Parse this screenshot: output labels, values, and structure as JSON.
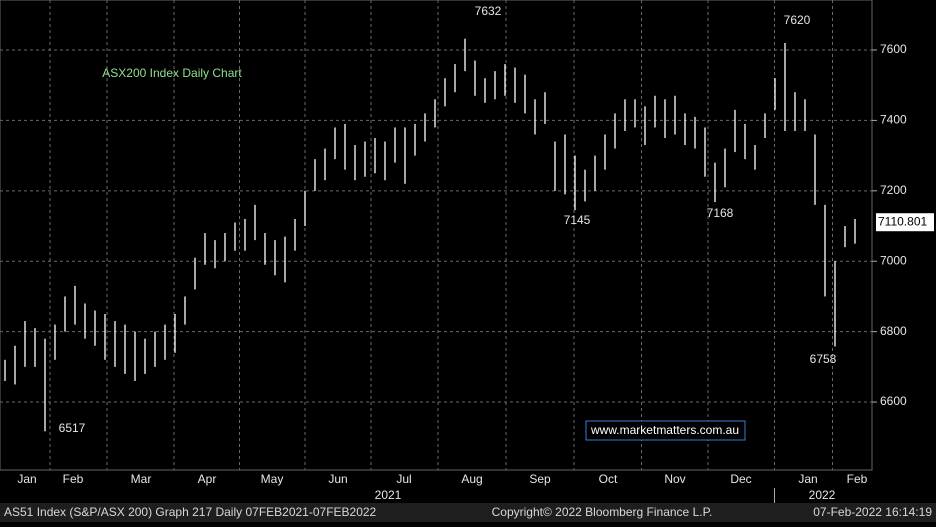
{
  "chart_data": {
    "type": "hilo",
    "title": "ASX200 Index Daily Chart",
    "xlim": [
      -0.5,
      86.7
    ],
    "xticks": [
      {
        "value": 2.2,
        "label": "Jan"
      },
      {
        "value": 6.8,
        "label": "Feb"
      },
      {
        "value": 13.6,
        "label": "Mar"
      },
      {
        "value": 20.2,
        "label": "Apr"
      },
      {
        "value": 26.7,
        "label": "May"
      },
      {
        "value": 33.3,
        "label": "Jun"
      },
      {
        "value": 39.9,
        "label": "Jul"
      },
      {
        "value": 46.7,
        "label": "Aug"
      },
      {
        "value": 53.5,
        "label": "Sep"
      },
      {
        "value": 60.3,
        "label": "Oct"
      },
      {
        "value": 67,
        "label": "Nov"
      },
      {
        "value": 73.6,
        "label": "Dec"
      },
      {
        "value": 80.3,
        "label": "Jan"
      },
      {
        "value": 85.2,
        "label": "Feb"
      }
    ],
    "years": [
      {
        "value": 38.3,
        "label": "2021"
      },
      {
        "value": 81.7,
        "label": "2022"
      }
    ],
    "ylim": [
      6407,
      7742
    ],
    "yticks": [
      6600,
      6800,
      7000,
      7200,
      7400,
      7600
    ],
    "grid": true,
    "color": "#ffffff",
    "high": [
      6720,
      6760,
      6830,
      6810,
      6780,
      6820,
      6900,
      6930,
      6880,
      6860,
      6850,
      6830,
      6820,
      6800,
      6780,
      6800,
      6820,
      6850,
      6900,
      7010,
      7080,
      7060,
      7080,
      7110,
      7120,
      7160,
      7080,
      7060,
      7070,
      7120,
      7200,
      7290,
      7320,
      7380,
      7390,
      7330,
      7340,
      7350,
      7340,
      7380,
      7380,
      7390,
      7420,
      7460,
      7520,
      7560,
      7632,
      7570,
      7520,
      7540,
      7560,
      7550,
      7530,
      7460,
      7480,
      7340,
      7360,
      7300,
      7260,
      7300,
      7360,
      7420,
      7460,
      7460,
      7440,
      7470,
      7460,
      7470,
      7420,
      7410,
      7380,
      7280,
      7320,
      7430,
      7390,
      7330,
      7420,
      7520,
      7620,
      7480,
      7460,
      7360,
      7160,
      7000,
      7100,
      7120
    ],
    "low": [
      6660,
      6650,
      6700,
      6700,
      6517,
      6720,
      6800,
      6820,
      6780,
      6760,
      6720,
      6700,
      6680,
      6660,
      6680,
      6700,
      6720,
      6740,
      6820,
      6920,
      6990,
      6980,
      7000,
      7030,
      7030,
      7060,
      6990,
      6960,
      6940,
      7030,
      7100,
      7200,
      7230,
      7290,
      7260,
      7230,
      7240,
      7250,
      7230,
      7280,
      7220,
      7300,
      7340,
      7380,
      7440,
      7480,
      7540,
      7470,
      7450,
      7460,
      7470,
      7450,
      7420,
      7360,
      7390,
      7200,
      7190,
      7145,
      7170,
      7200,
      7260,
      7320,
      7370,
      7380,
      7330,
      7380,
      7350,
      7360,
      7330,
      7320,
      7240,
      7168,
      7210,
      7310,
      7290,
      7260,
      7350,
      7430,
      7370,
      7370,
      7370,
      7160,
      6900,
      6758,
      7040,
      7050
    ],
    "last_price": 7110.801,
    "annotations": [
      "7632",
      "7620",
      "7145",
      "7168",
      "6517",
      "6758"
    ],
    "watermark": "www.marketmatters.com.au",
    "footer": {
      "left": "AS51 Index (S&P/ASX 200) Graph 217  Daily 07FEB2021-07FEB2022",
      "center": "Copyright© 2022 Bloomberg Finance L.P.",
      "right": "07-Feb-2022 16:14:19"
    }
  }
}
